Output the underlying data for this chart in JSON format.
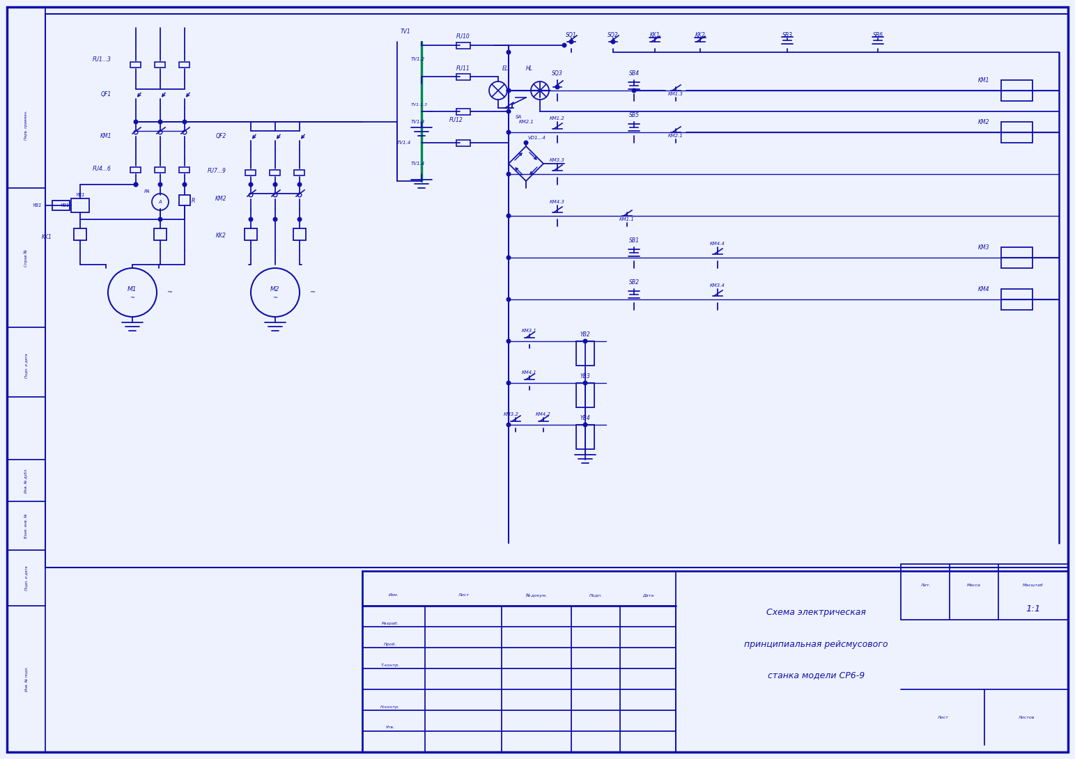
{
  "bg": "#eef2ff",
  "lc": "#1010aa",
  "gc": "#008855",
  "fw": 15.43,
  "fh": 10.9,
  "dpi": 100,
  "t1": "Схема электрическая",
  "t2": "принципиальная рейсмусового",
  "t3": "станка модели СР6-9",
  "scale": "1:1"
}
